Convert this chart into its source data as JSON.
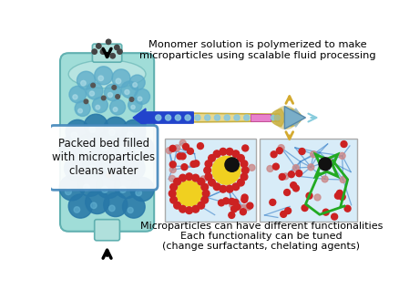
{
  "bg_color": "#ffffff",
  "text_top": "Monomer solution is polymerized to make\nmicroparticles using scalable fluid processing",
  "text_bottom1": "Microparticles can have different functionalities",
  "text_bottom2": "Each functionality can be tuned\n(change surfactants, chelating agents)",
  "label_box": "Packed bed filled\nwith microparticles\ncleans water",
  "column_color": "#a0ddd8",
  "column_color2": "#78c8c4",
  "column_border": "#60b0b0",
  "sphere_blue_light": "#5aaac8",
  "sphere_blue_dark": "#2878a8",
  "sphere_grey": "#555555",
  "arrow_blue": "#2244cc",
  "tube_color": "#e8d890",
  "tube_border": "#c8b040",
  "pink_box_color": "#e880cc",
  "nozzle_color": "#8ab4cc",
  "nozzle_outline": "#c8b040",
  "panel_bg": "#d8ecf8",
  "panel_border": "#aaaaaa",
  "net_color": "#4488cc",
  "red_dot": "#cc2222",
  "pink_dot": "#cc8888",
  "yellow_particle": "#f0d020",
  "green_shape": "#22aa22",
  "arrow_yellow": "#d4aa30",
  "arrow_cyan": "#88ccdd"
}
